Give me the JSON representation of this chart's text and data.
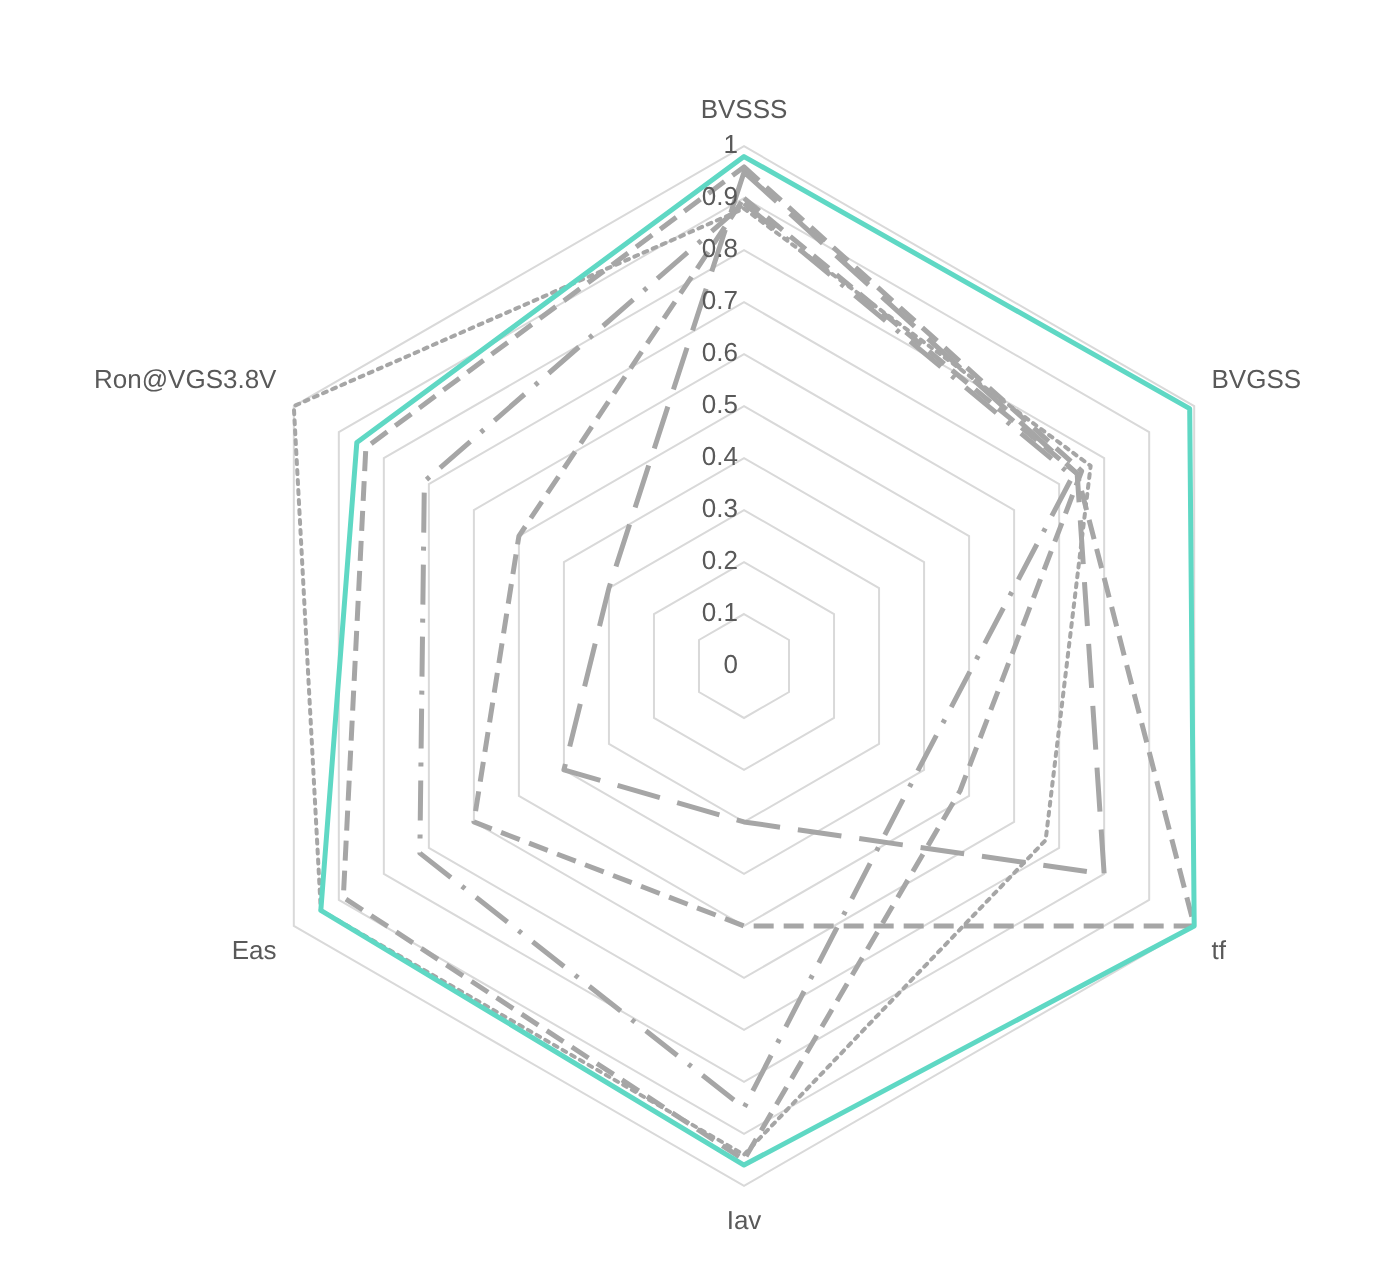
{
  "chart_data": {
    "type": "radar",
    "categories": [
      "BVSSS",
      "BVGSS",
      "tf",
      "Iav",
      "Eas",
      "Ron@VGS3.8V"
    ],
    "ylim": [
      0,
      1
    ],
    "yticks": [
      0,
      0.1,
      0.2,
      0.3,
      0.4,
      0.5,
      0.6,
      0.7,
      0.8,
      0.9,
      1
    ],
    "grid": true,
    "legend": false,
    "series": [
      {
        "color": "#5fd8c4",
        "line_style": "solid",
        "values": [
          0.98,
          0.99,
          1.0,
          0.96,
          0.94,
          0.86
        ]
      },
      {
        "color": "#a6a6a6",
        "line_style": "dotted",
        "values": [
          0.88,
          0.77,
          0.67,
          0.94,
          0.94,
          1.0
        ]
      },
      {
        "color": "#a6a6a6",
        "line_style": "dashed",
        "values": [
          0.96,
          0.75,
          0.48,
          0.95,
          0.89,
          0.84
        ]
      },
      {
        "color": "#a6a6a6",
        "line_style": "dashed",
        "values": [
          0.9,
          0.74,
          1.0,
          0.5,
          0.6,
          0.5
        ]
      },
      {
        "color": "#a6a6a6",
        "line_style": "longdash",
        "values": [
          0.95,
          0.74,
          0.8,
          0.3,
          0.4,
          0.3
        ]
      },
      {
        "color": "#a6a6a6",
        "line_style": "dashdot",
        "values": [
          0.89,
          0.73,
          0.39,
          0.85,
          0.72,
          0.71
        ]
      }
    ]
  }
}
